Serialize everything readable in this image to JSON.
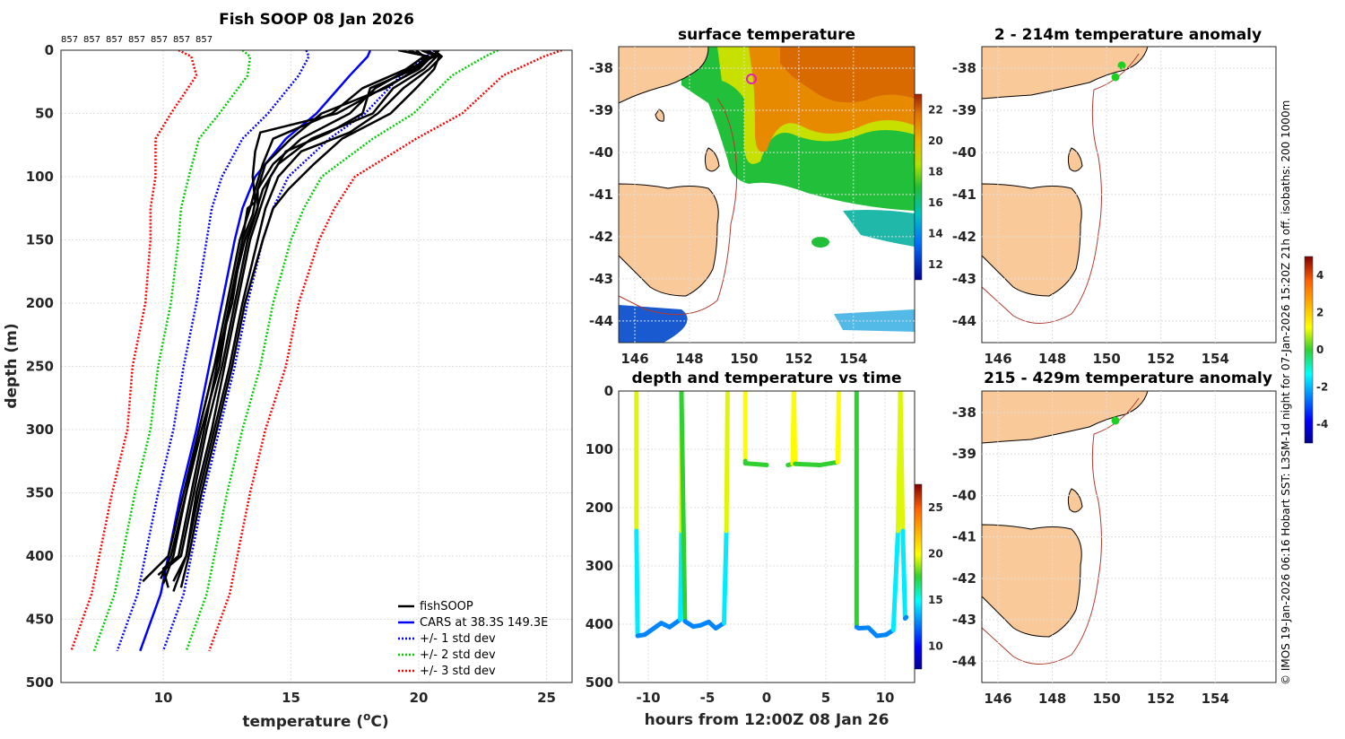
{
  "colors": {
    "cast": "#000000",
    "cars": "#0000ff",
    "std1": "#0000ff",
    "std2": "#00cc00",
    "std3": "#ff0000",
    "land": "#f9c999",
    "iso": "#b03a2e",
    "marker": "#e020c0"
  },
  "chart_data": [
    {
      "type": "line",
      "title": "Fish SOOP 08 Jan 2026",
      "xlabel": "temperature (°C)",
      "ylabel": "depth (m)",
      "xlim": [
        6,
        26
      ],
      "ylim": [
        500,
        0
      ],
      "y_reversed": true,
      "xticks": [
        10,
        15,
        20,
        25
      ],
      "yticks": [
        0,
        50,
        100,
        150,
        200,
        250,
        300,
        350,
        400,
        450,
        500
      ],
      "top_labels": [
        "857",
        "857",
        "857",
        "857",
        "857",
        "857",
        "857"
      ],
      "legend_position": "bottom-right",
      "legend": [
        "fishSOOP",
        "CARS at 38.3S 149.3E",
        "+/- 1 std dev",
        "+/- 2 std dev",
        "+/- 3 std dev"
      ],
      "depths": [
        0,
        5,
        20,
        50,
        70,
        100,
        125,
        150,
        200,
        250,
        300,
        350,
        400,
        430,
        475
      ],
      "cars_mean": [
        18.1,
        18.0,
        17.3,
        16.0,
        14.8,
        13.6,
        13.1,
        12.8,
        12.3,
        11.8,
        11.3,
        10.7,
        10.2,
        9.9,
        9.1
      ],
      "std_offsets": [
        [
          -2.5,
          -2.3,
          -2.0,
          -1.9,
          -1.7,
          -1.3,
          -1.2,
          -1.1,
          -1.0,
          -1.0,
          -0.9,
          -0.9,
          -0.9,
          -0.9,
          -0.9
        ],
        [
          2.5,
          2.3,
          2.0,
          1.9,
          1.7,
          1.3,
          1.2,
          1.1,
          1.0,
          1.0,
          0.9,
          0.9,
          0.9,
          0.9,
          0.9
        ],
        [
          -5.0,
          -4.6,
          -4.0,
          -3.8,
          -3.4,
          -2.6,
          -2.4,
          -2.2,
          -2.0,
          -2.0,
          -1.8,
          -1.8,
          -1.8,
          -1.8,
          -1.8
        ],
        [
          5.0,
          4.6,
          4.0,
          3.8,
          3.4,
          2.6,
          2.4,
          2.2,
          2.0,
          2.0,
          1.8,
          1.8,
          1.8,
          1.8,
          1.8
        ],
        [
          -7.5,
          -6.9,
          -6.0,
          -5.7,
          -5.1,
          -3.9,
          -3.6,
          -3.3,
          -3.0,
          -3.0,
          -2.7,
          -2.7,
          -2.7,
          -2.7,
          -2.7
        ],
        [
          7.5,
          6.9,
          6.0,
          5.7,
          5.1,
          3.9,
          3.6,
          3.3,
          3.0,
          3.0,
          2.7,
          2.7,
          2.7,
          2.7,
          2.7
        ]
      ],
      "casts": [
        {
          "depth": [
            0,
            5,
            15,
            30,
            50,
            65,
            80,
            100,
            120,
            125,
            150,
            200,
            250,
            300,
            350,
            400,
            410,
            425
          ],
          "temp": [
            20.8,
            20.5,
            20.0,
            18.6,
            16.8,
            13.8,
            13.6,
            13.5,
            13.6,
            13.3,
            13.1,
            12.6,
            12.1,
            11.6,
            11.1,
            10.6,
            10.0,
            10.2
          ]
        },
        {
          "depth": [
            0,
            5,
            15,
            30,
            50,
            70,
            90,
            110,
            125,
            150,
            200,
            250,
            300,
            350,
            400,
            415
          ],
          "temp": [
            20.4,
            20.6,
            19.6,
            18.3,
            17.3,
            15.4,
            14.3,
            13.7,
            13.7,
            13.3,
            12.8,
            12.3,
            11.7,
            11.2,
            10.7,
            9.8
          ]
        },
        {
          "depth": [
            0,
            5,
            15,
            30,
            50,
            65,
            80,
            100,
            125,
            150,
            200,
            250,
            300,
            350,
            400,
            420
          ],
          "temp": [
            19.6,
            20.3,
            19.8,
            18.1,
            17.8,
            16.5,
            14.8,
            14.2,
            13.8,
            13.4,
            12.9,
            12.4,
            11.9,
            11.3,
            10.9,
            10.4
          ]
        },
        {
          "depth": [
            0,
            5,
            15,
            30,
            50,
            70,
            90,
            110,
            130,
            150,
            200,
            250,
            300,
            350,
            400,
            422
          ],
          "temp": [
            20.1,
            20.7,
            20.2,
            19.0,
            18.2,
            15.8,
            14.5,
            13.9,
            13.6,
            13.2,
            12.6,
            12.2,
            11.5,
            10.9,
            10.4,
            10.0
          ]
        },
        {
          "depth": [
            0,
            5,
            15,
            30,
            50,
            70,
            90,
            110,
            130,
            150,
            200,
            250,
            300,
            350,
            400,
            418
          ],
          "temp": [
            19.2,
            20.4,
            19.9,
            18.7,
            16.2,
            15.0,
            14.0,
            13.7,
            13.5,
            13.1,
            12.7,
            12.0,
            11.4,
            10.9,
            10.3,
            9.9
          ]
        },
        {
          "depth": [
            0,
            5,
            15,
            30,
            50,
            65,
            80,
            100,
            125,
            150,
            200,
            250,
            300,
            350,
            400,
            428
          ],
          "temp": [
            20.6,
            20.9,
            20.4,
            19.4,
            18.4,
            17.3,
            15.4,
            14.5,
            14.0,
            13.7,
            13.1,
            12.6,
            12.0,
            11.4,
            10.9,
            10.4
          ]
        },
        {
          "depth": [
            0,
            5,
            15,
            30,
            50,
            70,
            90,
            110,
            125,
            150,
            200,
            250,
            300,
            350,
            400,
            420
          ],
          "temp": [
            19.9,
            20.2,
            19.5,
            17.8,
            16.6,
            14.3,
            13.9,
            13.6,
            13.4,
            13.0,
            12.5,
            12.0,
            11.4,
            10.8,
            10.2,
            9.2
          ]
        },
        {
          "depth": [
            0,
            5,
            15,
            30,
            50,
            70,
            90,
            110,
            125,
            150,
            200,
            250,
            300,
            350,
            400,
            425
          ],
          "temp": [
            20.3,
            20.8,
            20.6,
            19.9,
            18.9,
            17.0,
            15.9,
            14.9,
            14.3,
            13.9,
            13.2,
            12.7,
            12.1,
            11.5,
            11.0,
            10.7
          ]
        }
      ]
    },
    {
      "type": "heatmap",
      "title": "surface temperature",
      "xticks": [
        "146",
        "148",
        "150",
        "152",
        "154"
      ],
      "yticks": [
        "-38",
        "-39",
        "-40",
        "-41",
        "-42",
        "-43",
        "-44"
      ],
      "colorbar": {
        "ticks": [
          "12",
          "14",
          "16",
          "18",
          "20",
          "22"
        ],
        "range": [
          12,
          23
        ]
      }
    },
    {
      "type": "scatter",
      "title": "depth and temperature vs time",
      "xlabel": "hours from 12:00Z 08 Jan 26",
      "xticks": [
        "-10",
        "-5",
        "0",
        "5",
        "10"
      ],
      "yticks": [
        "0",
        "100",
        "200",
        "300",
        "400",
        "500"
      ],
      "xlim": [
        -12.5,
        12.5
      ],
      "ylim": [
        500,
        0
      ],
      "colorbar": {
        "ticks": [
          "10",
          "15",
          "20",
          "25"
        ],
        "range": [
          6,
          26
        ]
      },
      "trace": {
        "hours": [
          -11.0,
          -11.0,
          -10.9,
          -10.3,
          -9.6,
          -8.9,
          -8.2,
          -7.3,
          -7.2,
          -7.2,
          -6.9,
          -6.2,
          -5.6,
          -4.9,
          -4.3,
          -3.6,
          -3.4,
          -3.3,
          -1.8,
          -1.8,
          -1.8,
          0,
          1.8,
          2.2,
          2.3,
          2.4,
          4.5,
          6.0,
          6.1,
          7.6,
          7.6,
          7.8,
          8.6,
          9.3,
          10.1,
          10.7,
          11.1,
          11.3,
          11.5,
          11.7,
          11.8
        ],
        "depth": [
          0,
          240,
          420,
          418,
          408,
          398,
          405,
          392,
          240,
          0,
          395,
          404,
          402,
          396,
          407,
          398,
          240,
          0,
          0,
          120,
          124,
          127,
          127,
          125,
          0,
          125,
          127,
          122,
          0,
          0,
          405,
          407,
          406,
          420,
          418,
          410,
          240,
          0,
          240,
          390,
          388
        ],
        "temp": [
          21,
          15,
          11,
          11,
          11,
          11,
          11,
          11,
          15,
          21,
          11,
          11,
          11,
          11,
          11,
          11,
          15,
          21,
          21,
          16,
          16,
          16,
          16,
          16,
          21,
          16,
          16,
          16,
          21,
          21,
          11,
          11,
          11,
          11,
          11,
          11,
          15,
          21,
          15,
          11,
          11
        ]
      }
    },
    {
      "type": "heatmap",
      "title": "2 - 214m temperature anomaly",
      "xticks": [
        "146",
        "148",
        "150",
        "152",
        "154"
      ],
      "yticks": [
        "-38",
        "-39",
        "-40",
        "-41",
        "-42",
        "-43",
        "-44"
      ]
    },
    {
      "type": "heatmap",
      "title": "215 - 429m temperature anomaly",
      "xticks": [
        "146",
        "148",
        "150",
        "152",
        "154"
      ],
      "yticks": [
        "-38",
        "-39",
        "-40",
        "-41",
        "-42",
        "-43",
        "-44"
      ],
      "colorbar": {
        "ticks": [
          "4",
          "2",
          "0",
          "-2",
          "-4"
        ],
        "range": [
          -5,
          5
        ]
      }
    }
  ],
  "side_caption": "© IMOS 19-Jan-2026 06:16 Hobart SST: L3SM-1d night for 07-Jan-2026 15:20Z 21h off. isobaths: 200  1000m"
}
